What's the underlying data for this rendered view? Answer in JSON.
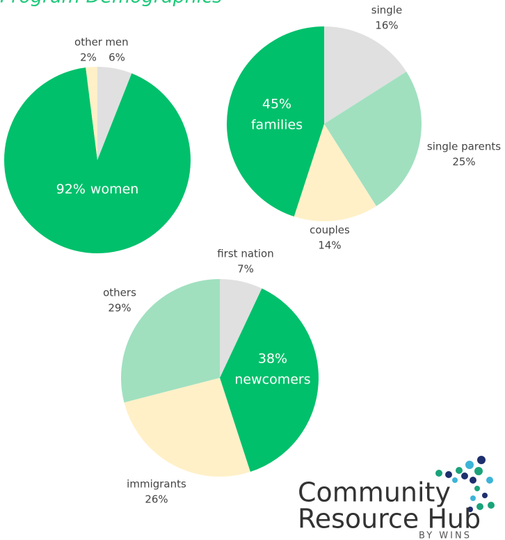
{
  "title": "Program Demographics",
  "chart_data": [
    {
      "type": "pie",
      "categories": [
        "men",
        "women",
        "other"
      ],
      "values": [
        6,
        92,
        2
      ],
      "value_labels": [
        "6%",
        "92%",
        "2%"
      ],
      "colors": [
        "#e0e0e0",
        "#00c06b",
        "#fff0c8"
      ]
    },
    {
      "type": "pie",
      "categories": [
        "single",
        "single parents",
        "couples",
        "families"
      ],
      "values": [
        16,
        25,
        14,
        45
      ],
      "value_labels": [
        "16%",
        "25%",
        "14%",
        "45%"
      ],
      "colors": [
        "#e0e0e0",
        "#a0e0bf",
        "#fff0c8",
        "#00c06b"
      ]
    },
    {
      "type": "pie",
      "categories": [
        "first nation",
        "newcomers",
        "immigrants",
        "others"
      ],
      "values": [
        7,
        38,
        26,
        29
      ],
      "value_labels": [
        "7%",
        "38%",
        "26%",
        "29%"
      ],
      "colors": [
        "#e0e0e0",
        "#00c06b",
        "#fff0c8",
        "#a0e0bf"
      ]
    }
  ],
  "logo": {
    "line1": "Community",
    "line2": "Resource Hub",
    "line3": "BY WINS"
  }
}
